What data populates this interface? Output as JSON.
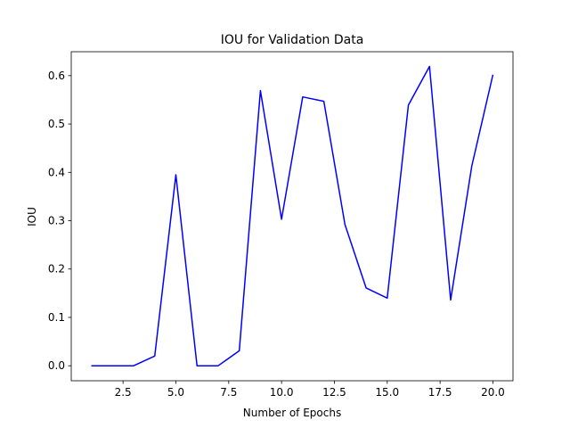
{
  "chart_data": {
    "type": "line",
    "title": "IOU for Validation Data",
    "xlabel": "Number of Epochs",
    "ylabel": "IOU",
    "xlim": [
      0.05,
      20.95
    ],
    "ylim": [
      -0.031,
      0.6495
    ],
    "xticks": [
      2.5,
      5.0,
      7.5,
      10.0,
      12.5,
      15.0,
      17.5,
      20.0
    ],
    "xtick_labels": [
      "2.5",
      "5.0",
      "7.5",
      "10.0",
      "12.5",
      "15.0",
      "17.5",
      "20.0"
    ],
    "yticks": [
      0.0,
      0.1,
      0.2,
      0.3,
      0.4,
      0.5,
      0.6
    ],
    "ytick_labels": [
      "0.0",
      "0.1",
      "0.2",
      "0.3",
      "0.4",
      "0.5",
      "0.6"
    ],
    "grid": false,
    "series": [
      {
        "color": "#0000ff",
        "x": [
          1,
          2,
          3,
          4,
          5,
          6,
          7,
          8,
          9,
          10,
          11,
          12,
          13,
          14,
          15,
          16,
          17,
          18,
          19,
          20
        ],
        "y": [
          0.0,
          0.0,
          0.0,
          0.02,
          0.395,
          0.0,
          0.0,
          0.031,
          0.569,
          0.303,
          0.556,
          0.547,
          0.292,
          0.161,
          0.14,
          0.539,
          0.619,
          0.136,
          0.413,
          0.602
        ]
      }
    ]
  }
}
